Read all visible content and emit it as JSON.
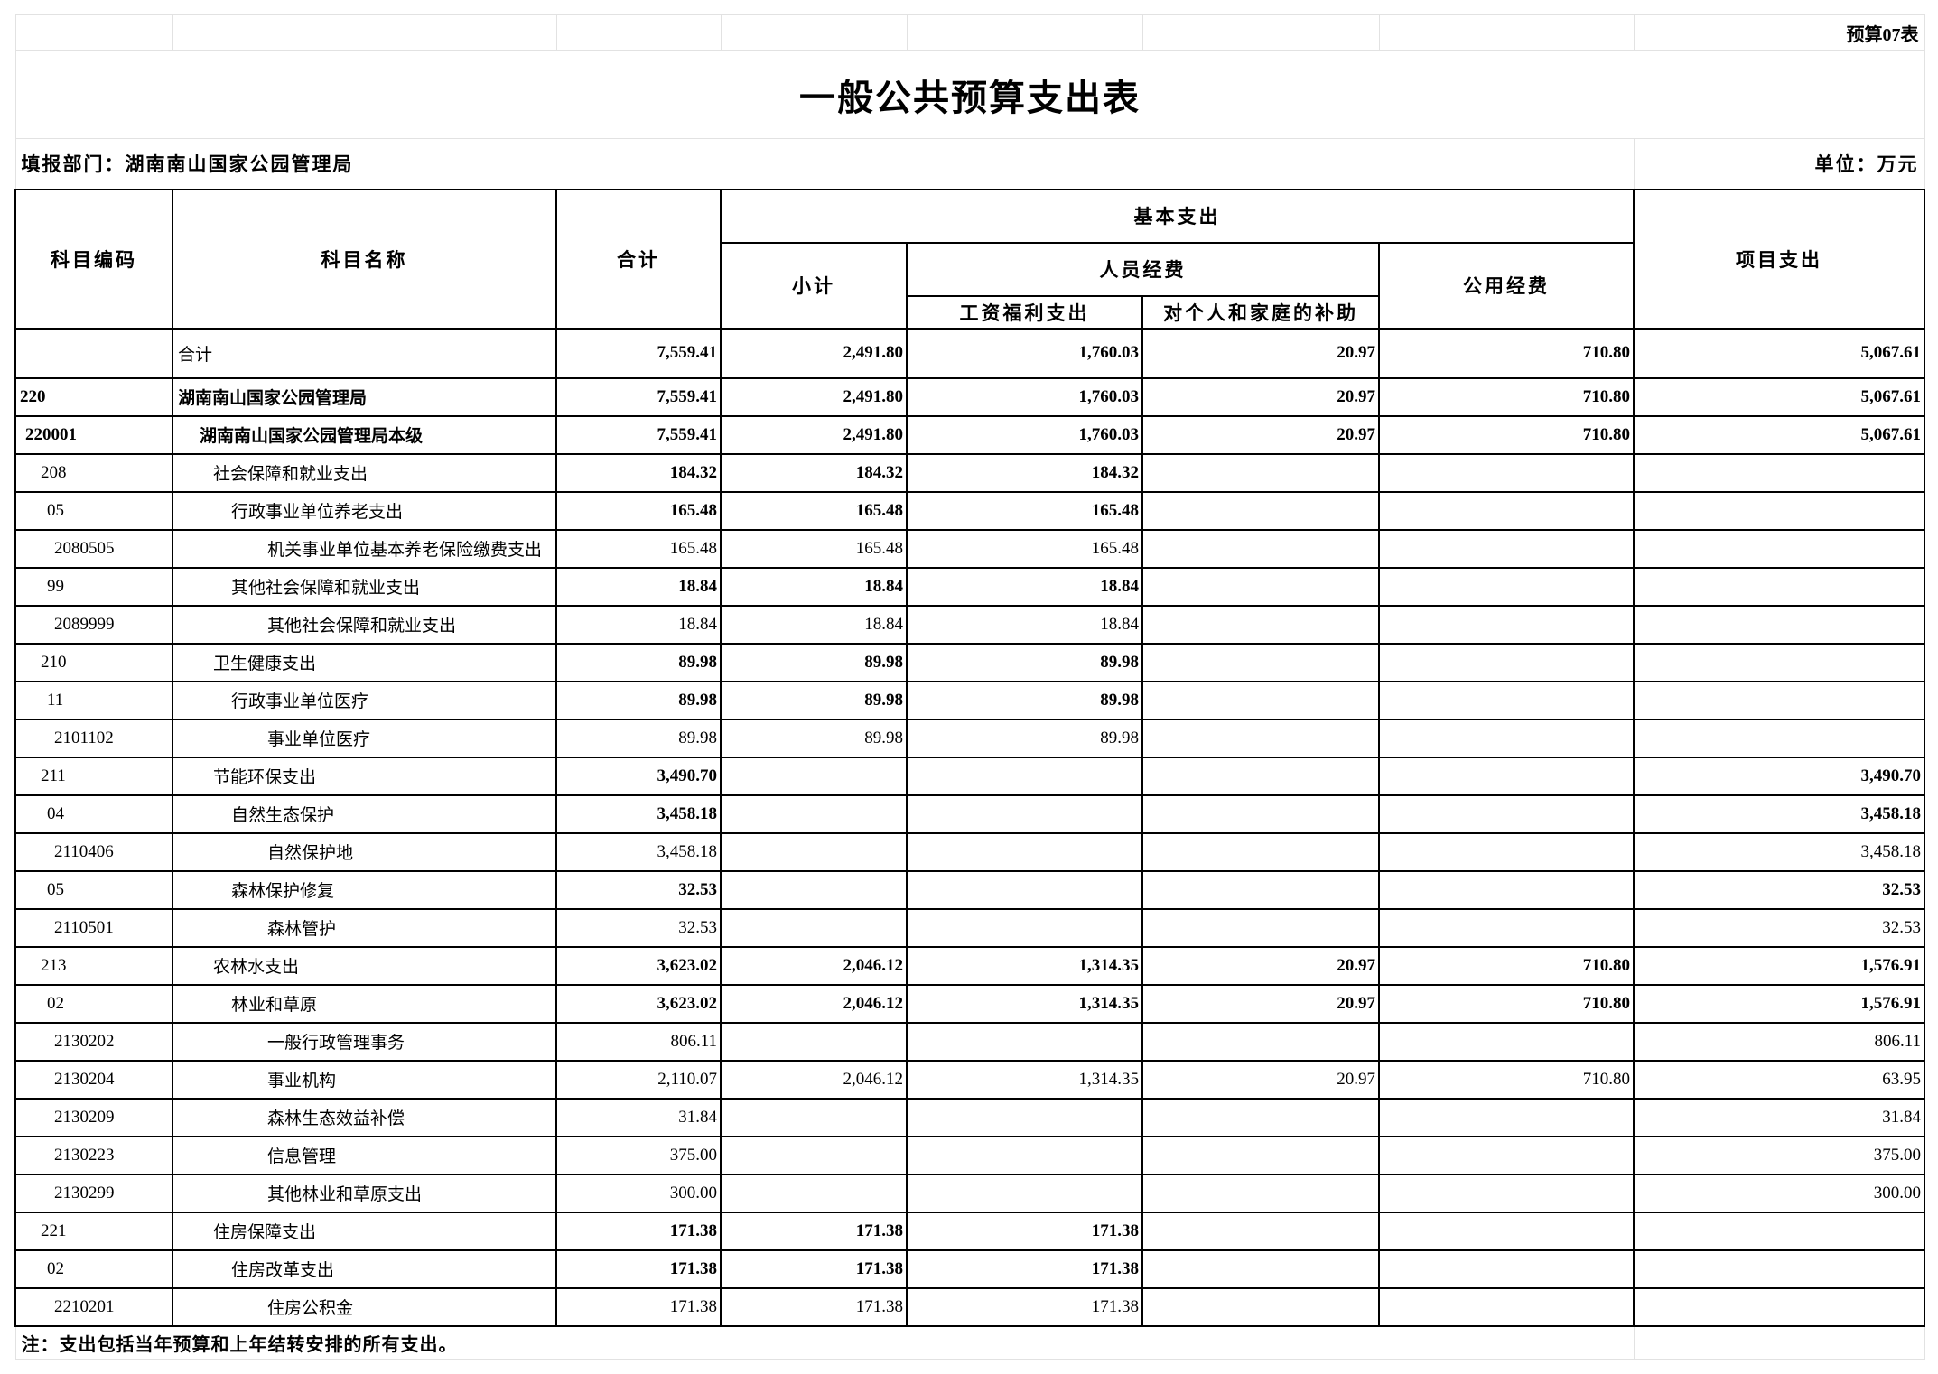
{
  "form_no": "预算07表",
  "title": "一般公共预算支出表",
  "department": "填报部门：湖南南山国家公园管理局",
  "unit": "单位：万元",
  "headers": {
    "code": "科目编码",
    "name": "科目名称",
    "total": "合计",
    "basic": "基本支出",
    "subtotal": "小计",
    "personnel": "人员经费",
    "wages": "工资福利支出",
    "subsidy": "对个人和家庭的补助",
    "public": "公用经费",
    "project": "项目支出"
  },
  "rows": [
    {
      "code": "",
      "name": "合计",
      "level": 0,
      "values": [
        "7,559.41",
        "2,491.80",
        "1,760.03",
        "20.97",
        "710.80",
        "5,067.61"
      ]
    },
    {
      "code": "220",
      "name": "湖南南山国家公园管理局",
      "level": 1,
      "values": [
        "7,559.41",
        "2,491.80",
        "1,760.03",
        "20.97",
        "710.80",
        "5,067.61"
      ]
    },
    {
      "code": "220001",
      "name": "湖南南山国家公园管理局本级",
      "level": 2,
      "values": [
        "7,559.41",
        "2,491.80",
        "1,760.03",
        "20.97",
        "710.80",
        "5,067.61"
      ]
    },
    {
      "code": "208",
      "name": "社会保障和就业支出",
      "level": 3,
      "values": [
        "184.32",
        "184.32",
        "184.32",
        "",
        "",
        ""
      ]
    },
    {
      "code": "05",
      "name": "行政事业单位养老支出",
      "level": 4,
      "values": [
        "165.48",
        "165.48",
        "165.48",
        "",
        "",
        ""
      ]
    },
    {
      "code": "2080505",
      "name": "机关事业单位基本养老保险缴费支出",
      "level": 5,
      "values": [
        "165.48",
        "165.48",
        "165.48",
        "",
        "",
        ""
      ]
    },
    {
      "code": "99",
      "name": "其他社会保障和就业支出",
      "level": 4,
      "values": [
        "18.84",
        "18.84",
        "18.84",
        "",
        "",
        ""
      ]
    },
    {
      "code": "2089999",
      "name": "其他社会保障和就业支出",
      "level": 5,
      "values": [
        "18.84",
        "18.84",
        "18.84",
        "",
        "",
        ""
      ]
    },
    {
      "code": "210",
      "name": "卫生健康支出",
      "level": 3,
      "values": [
        "89.98",
        "89.98",
        "89.98",
        "",
        "",
        ""
      ]
    },
    {
      "code": "11",
      "name": "行政事业单位医疗",
      "level": 4,
      "values": [
        "89.98",
        "89.98",
        "89.98",
        "",
        "",
        ""
      ]
    },
    {
      "code": "2101102",
      "name": "事业单位医疗",
      "level": 5,
      "values": [
        "89.98",
        "89.98",
        "89.98",
        "",
        "",
        ""
      ]
    },
    {
      "code": "211",
      "name": "节能环保支出",
      "level": 3,
      "values": [
        "3,490.70",
        "",
        "",
        "",
        "",
        "3,490.70"
      ]
    },
    {
      "code": "04",
      "name": "自然生态保护",
      "level": 4,
      "values": [
        "3,458.18",
        "",
        "",
        "",
        "",
        "3,458.18"
      ]
    },
    {
      "code": "2110406",
      "name": "自然保护地",
      "level": 5,
      "values": [
        "3,458.18",
        "",
        "",
        "",
        "",
        "3,458.18"
      ]
    },
    {
      "code": "05",
      "name": "森林保护修复",
      "level": 4,
      "values": [
        "32.53",
        "",
        "",
        "",
        "",
        "32.53"
      ]
    },
    {
      "code": "2110501",
      "name": "森林管护",
      "level": 5,
      "values": [
        "32.53",
        "",
        "",
        "",
        "",
        "32.53"
      ]
    },
    {
      "code": "213",
      "name": "农林水支出",
      "level": 3,
      "values": [
        "3,623.02",
        "2,046.12",
        "1,314.35",
        "20.97",
        "710.80",
        "1,576.91"
      ]
    },
    {
      "code": "02",
      "name": "林业和草原",
      "level": 4,
      "values": [
        "3,623.02",
        "2,046.12",
        "1,314.35",
        "20.97",
        "710.80",
        "1,576.91"
      ]
    },
    {
      "code": "2130202",
      "name": "一般行政管理事务",
      "level": 5,
      "values": [
        "806.11",
        "",
        "",
        "",
        "",
        "806.11"
      ]
    },
    {
      "code": "2130204",
      "name": "事业机构",
      "level": 5,
      "values": [
        "2,110.07",
        "2,046.12",
        "1,314.35",
        "20.97",
        "710.80",
        "63.95"
      ]
    },
    {
      "code": "2130209",
      "name": "森林生态效益补偿",
      "level": 5,
      "values": [
        "31.84",
        "",
        "",
        "",
        "",
        "31.84"
      ]
    },
    {
      "code": "2130223",
      "name": "信息管理",
      "level": 5,
      "values": [
        "375.00",
        "",
        "",
        "",
        "",
        "375.00"
      ]
    },
    {
      "code": "2130299",
      "name": "其他林业和草原支出",
      "level": 5,
      "values": [
        "300.00",
        "",
        "",
        "",
        "",
        "300.00"
      ]
    },
    {
      "code": "221",
      "name": "住房保障支出",
      "level": 3,
      "values": [
        "171.38",
        "171.38",
        "171.38",
        "",
        "",
        ""
      ]
    },
    {
      "code": "02",
      "name": "住房改革支出",
      "level": 4,
      "values": [
        "171.38",
        "171.38",
        "171.38",
        "",
        "",
        ""
      ]
    },
    {
      "code": "2210201",
      "name": "住房公积金",
      "level": 5,
      "values": [
        "171.38",
        "171.38",
        "171.38",
        "",
        "",
        ""
      ]
    }
  ],
  "note": "注：支出包括当年预算和上年结转安排的所有支出。"
}
